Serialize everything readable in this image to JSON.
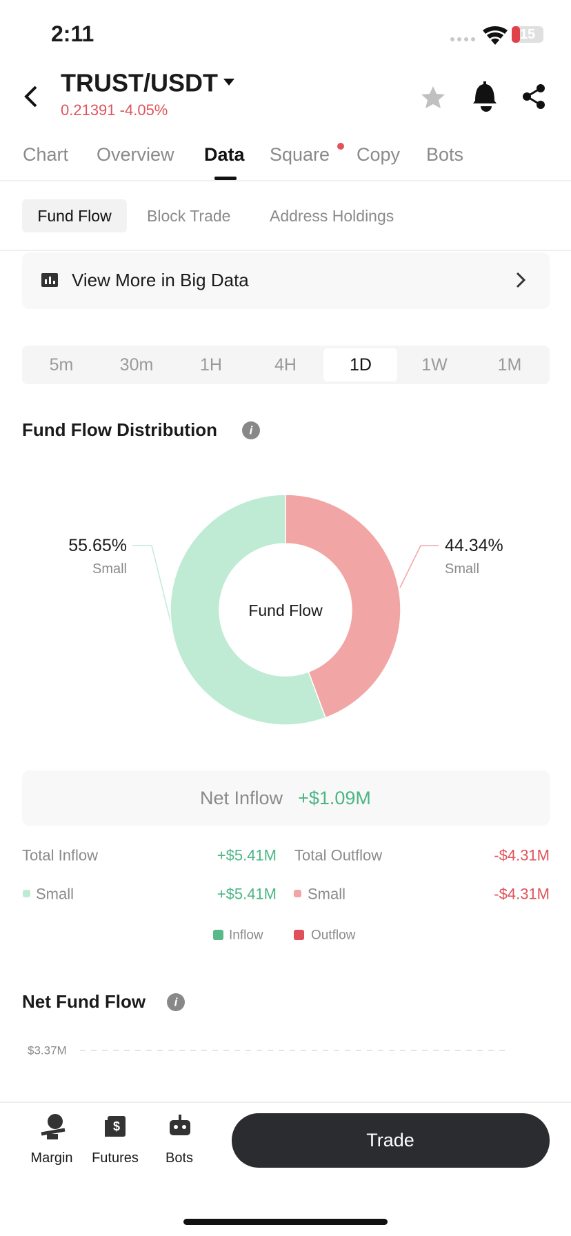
{
  "status": {
    "time": "2:11",
    "battery": "15"
  },
  "header": {
    "pair": "TRUST/USDT",
    "price": "0.21391",
    "change": "-4.05%"
  },
  "tabs": [
    "Chart",
    "Overview",
    "Data",
    "Square",
    "Copy",
    "Bots"
  ],
  "sub_tabs": [
    "Fund Flow",
    "Block Trade",
    "Address Holdings"
  ],
  "banner": "View More in Big Data",
  "timeframes": [
    "5m",
    "30m",
    "1H",
    "4H",
    "1D",
    "1W",
    "1M"
  ],
  "chart_data": {
    "type": "pie",
    "title": "Fund Flow Distribution",
    "center_label": "Fund Flow",
    "categories": [
      "Small",
      "Small"
    ],
    "values": [
      55.65,
      44.34
    ],
    "value_labels": [
      "55.65%",
      "44.34%"
    ],
    "colors": [
      "#bfebd5",
      "#f1a5a5"
    ]
  },
  "summary": {
    "net_label": "Net Inflow",
    "net_value": "+$1.09M",
    "rows": [
      [
        "Total Inflow",
        "+$5.41M",
        "Total Outflow",
        "-$4.31M"
      ],
      [
        "Small",
        "+$5.41M",
        "Small",
        "-$4.31M"
      ]
    ],
    "legend": [
      "Inflow",
      "Outflow"
    ]
  },
  "net_fund_flow": {
    "title": "Net Fund Flow",
    "yticks": [
      {
        "value": 3370000,
        "label": "$3.37M"
      }
    ]
  },
  "bottom_nav": [
    "Margin",
    "Futures",
    "Bots"
  ],
  "trade_button": "Trade"
}
